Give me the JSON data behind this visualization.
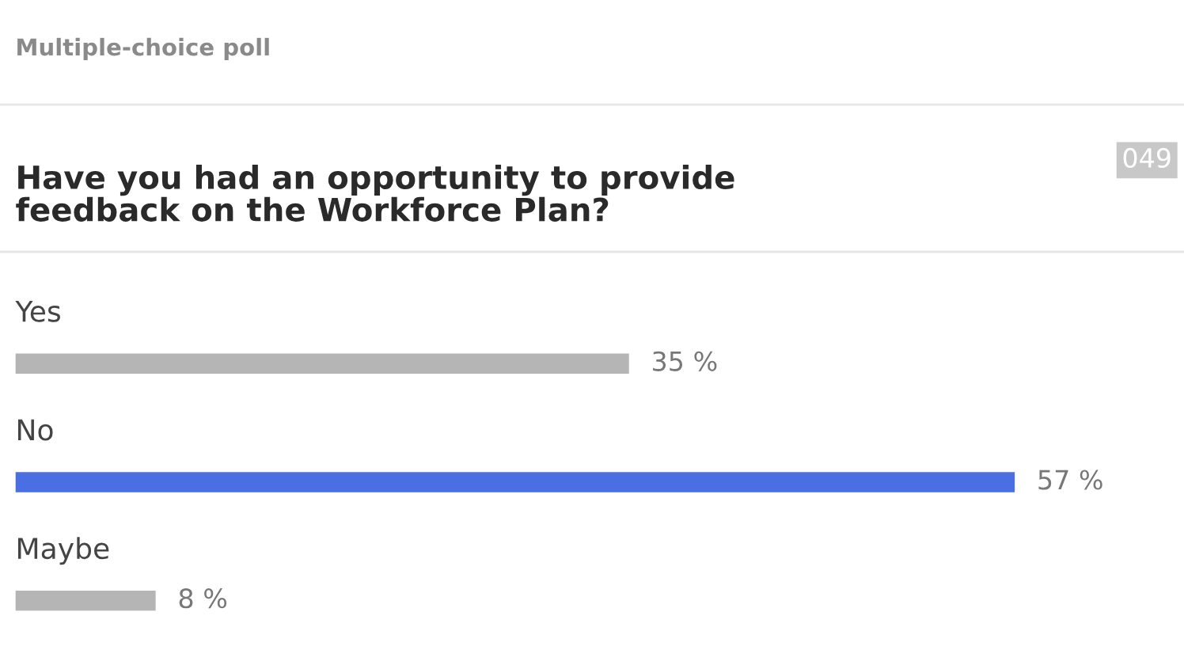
{
  "chart_data": {
    "type": "bar",
    "orientation": "horizontal",
    "subtitle": "Multiple-choice poll",
    "title": "Have you had an opportunity to provide\nfeedback on the Workforce Plan?",
    "annotations": [
      "049"
    ],
    "categories": [
      "Yes",
      "No",
      "Maybe"
    ],
    "values": [
      35,
      57,
      8
    ],
    "colors": [
      "#b5b5b5",
      "#4a6fe3",
      "#b5b5b5"
    ],
    "value_labels": [
      "35 %",
      "57 %",
      "8 %"
    ]
  }
}
